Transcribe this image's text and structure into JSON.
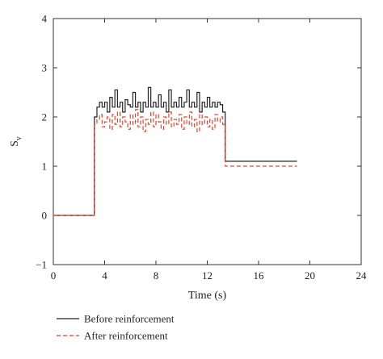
{
  "chart_data": {
    "type": "line",
    "title": "",
    "xlabel": "Time (s)",
    "ylabel_main": "S",
    "ylabel_sub": "v",
    "xlim": [
      0,
      24
    ],
    "ylim": [
      -1,
      4
    ],
    "xticks": [
      0,
      4,
      8,
      12,
      16,
      20,
      24
    ],
    "yticks": [
      -1,
      0,
      1,
      2,
      3,
      4
    ],
    "grid": false,
    "legend_position": "bottom-left",
    "series": [
      {
        "name": "Before reinforcement",
        "color": "#222222",
        "dash": "solid",
        "x": [
          0,
          3.2,
          3.2,
          3.4,
          3.6,
          3.8,
          4.0,
          4.2,
          4.4,
          4.6,
          4.8,
          5.0,
          5.2,
          5.4,
          5.6,
          5.8,
          6.0,
          6.2,
          6.4,
          6.6,
          6.8,
          7.0,
          7.2,
          7.4,
          7.6,
          7.8,
          8.0,
          8.2,
          8.4,
          8.6,
          8.8,
          9.0,
          9.2,
          9.4,
          9.6,
          9.8,
          10.0,
          10.2,
          10.4,
          10.6,
          10.8,
          11.0,
          11.2,
          11.4,
          11.6,
          11.8,
          12.0,
          12.2,
          12.4,
          12.6,
          12.8,
          13.0,
          13.2,
          13.4,
          19
        ],
        "y": [
          0,
          0,
          2.0,
          2.2,
          2.3,
          2.2,
          2.3,
          2.1,
          2.4,
          2.2,
          2.55,
          2.2,
          2.3,
          2.1,
          2.35,
          2.25,
          2.2,
          2.5,
          2.2,
          2.3,
          2.1,
          2.3,
          2.2,
          2.6,
          2.2,
          2.3,
          2.2,
          2.45,
          2.2,
          2.3,
          2.1,
          2.55,
          2.2,
          2.3,
          2.2,
          2.4,
          2.2,
          2.3,
          2.55,
          2.2,
          2.3,
          2.2,
          2.5,
          2.1,
          2.3,
          2.2,
          2.4,
          2.2,
          2.3,
          2.2,
          2.3,
          2.25,
          2.1,
          1.1,
          1.1
        ]
      },
      {
        "name": "After reinforcement",
        "color": "#e2452c",
        "dash": "dashed",
        "x": [
          0,
          3.2,
          3.2,
          3.4,
          3.6,
          3.8,
          4.0,
          4.2,
          4.4,
          4.6,
          4.8,
          5.0,
          5.2,
          5.4,
          5.6,
          5.8,
          6.0,
          6.2,
          6.4,
          6.6,
          6.8,
          7.0,
          7.2,
          7.4,
          7.6,
          7.8,
          8.0,
          8.2,
          8.4,
          8.6,
          8.8,
          9.0,
          9.2,
          9.4,
          9.6,
          9.8,
          10.0,
          10.2,
          10.4,
          10.6,
          10.8,
          11.0,
          11.2,
          11.4,
          11.6,
          11.8,
          12.0,
          12.2,
          12.4,
          12.6,
          12.8,
          13.0,
          13.2,
          13.4,
          19
        ],
        "y": [
          0,
          0,
          1.85,
          1.95,
          2.05,
          1.8,
          1.9,
          2.0,
          1.75,
          2.05,
          1.85,
          2.1,
          1.8,
          2.0,
          1.9,
          1.75,
          2.05,
          1.85,
          2.15,
          1.8,
          2.0,
          1.7,
          1.95,
          1.85,
          2.1,
          1.8,
          2.05,
          1.9,
          1.75,
          2.0,
          1.85,
          2.1,
          1.8,
          1.95,
          1.85,
          2.05,
          1.75,
          2.0,
          1.85,
          2.1,
          1.8,
          1.95,
          1.7,
          2.05,
          1.85,
          2.0,
          1.8,
          1.95,
          1.75,
          2.05,
          1.9,
          2.0,
          1.85,
          1.0,
          1.0
        ]
      }
    ]
  }
}
